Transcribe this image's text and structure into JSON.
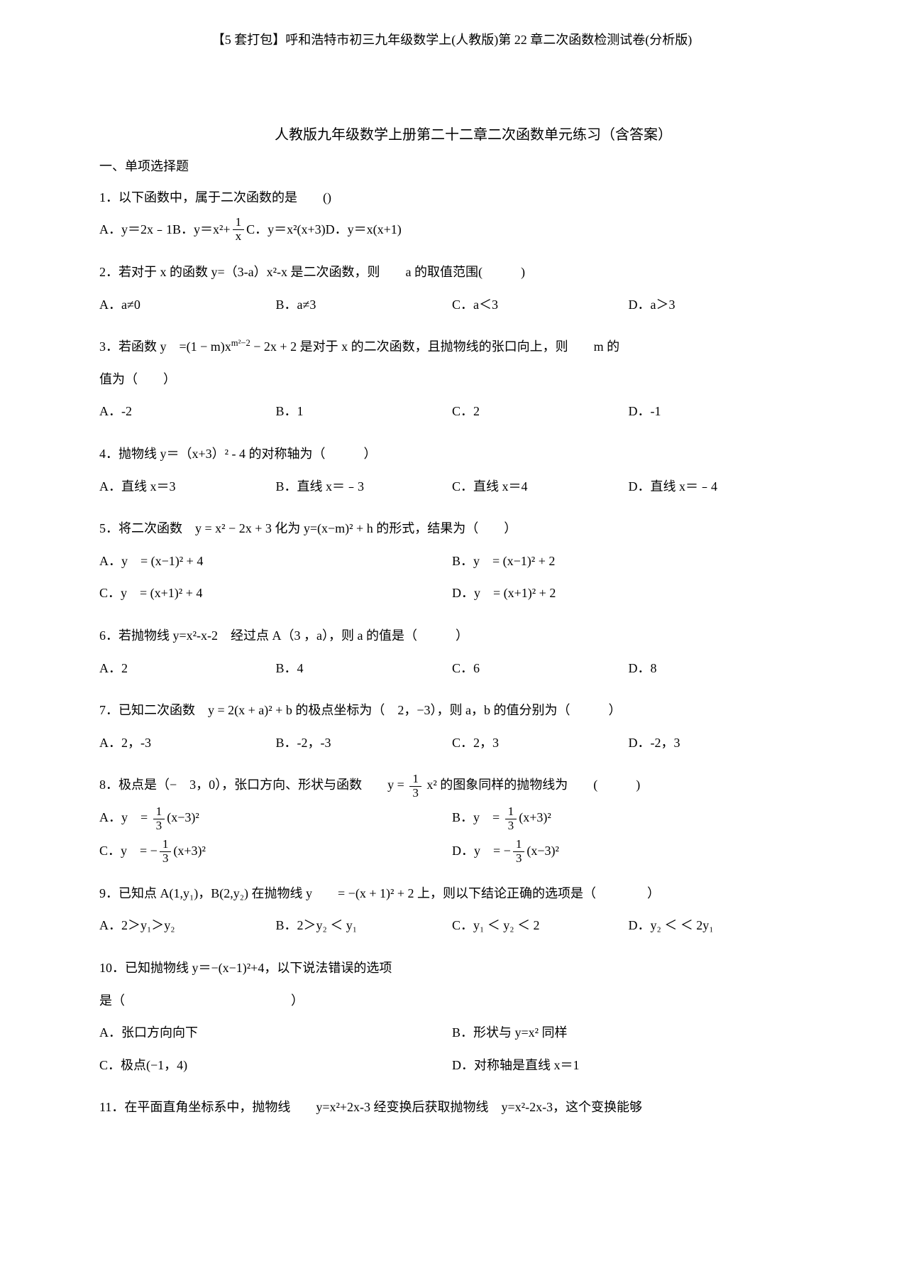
{
  "header": "【5 套打包】呼和浩特市初三九年级数学上(人教版)第 22 章二次函数检测试卷(分析版)",
  "mainTitle": "人教版九年级数学上册第二十二章二次函数单元练习（含答案）",
  "sectionTitle": "一、单项选择题",
  "q1": {
    "text": "1．以下函数中，属于二次函数的是　　()",
    "a": "A．y＝2x﹣1",
    "b": "B．y＝x²+",
    "bFracNum": "1",
    "bFracDen": "x",
    "c": "C．y＝x²(x+3)",
    "d": "D．y＝x(x+1)"
  },
  "q2": {
    "text": "2．若对于 x 的函数 y=（3-a）x²-x 是二次函数，则　　a 的取值范围(　　　)",
    "a": "A．a≠0",
    "b": "B．a≠3",
    "c": "C．a＜3",
    "d": "D．a＞3"
  },
  "q3": {
    "text1": "3．若函数 y　=(1 − m)x",
    "exp": "m²−2",
    "text2": " − 2x + 2 是对于 x 的二次函数，且抛物线的张口向上，则　　m 的",
    "text3": "值为（　　）",
    "a": "A．-2",
    "b": "B．1",
    "c": "C．2",
    "d": "D．-1"
  },
  "q4": {
    "text": "4．抛物线 y＝（x+3）² - 4 的对称轴为（　　　）",
    "a": "A．直线 x＝3",
    "b": "B．直线 x＝﹣3",
    "c": "C．直线 x＝4",
    "d": "D．直线 x＝﹣4"
  },
  "q5": {
    "text": "5．将二次函数　y = x² − 2x + 3 化为 y=(x−m)² + h 的形式，结果为（　　）",
    "a": "A．y　= (x−1)² + 4",
    "b": "B．y　= (x−1)² + 2",
    "c": "C．y　= (x+1)² + 4",
    "d": "D．y　= (x+1)² + 2"
  },
  "q6": {
    "text": "6．若抛物线 y=x²-x-2　经过点 A（3 ，a），则 a 的值是（　　　）",
    "a": "A．2",
    "b": "B．4",
    "c": "C．6",
    "d": "D．8"
  },
  "q7": {
    "text": "7．已知二次函数　y = 2(x + a)² + b 的极点坐标为（　2，−3），则 a，b 的值分别为（　　　）",
    "a": "A．2，-3",
    "b": "B．-2，-3",
    "c": "C．2，3",
    "d": "D．-2，3"
  },
  "q8": {
    "text1": "8．极点是（−　3，0），张口方向、形状与函数　　y = ",
    "fracNum": "1",
    "fracDen": "3",
    "text2": "x² 的图象同样的抛物线为　　(　　　)",
    "aPrefix": "A．y　= ",
    "aNum": "1",
    "aDen": "3",
    "aSuffix": "(x−3)²",
    "bPrefix": "B．y　= ",
    "bNum": "1",
    "bDen": "3",
    "bSuffix": "(x+3)²",
    "cPrefix": "C．y　= −",
    "cNum": "1",
    "cDen": "3",
    "cSuffix": "(x+3)²",
    "dPrefix": "D．y　= −",
    "dNum": "1",
    "dDen": "3",
    "dSuffix": "(x−3)²"
  },
  "q9": {
    "text": "9．已知点 A(1,y₁)，B(2,y₂) 在抛物线 y　　= −(x + 1)² + 2 上，则以下结论正确的选项是（　　　　）",
    "a": "A．2＞y₁＞y₂",
    "b": "B．2＞y₂ ＜ y₁",
    "c": "C．y₁ ＜ y₂ ＜ 2",
    "d": "D．y₂ ＜ ＜ 2y₁"
  },
  "q10": {
    "text1": "10．已知抛物线 y＝−(x−1)²+4，以下说法错误的选项",
    "text2": "是（　　　　　　　　　　　　　）",
    "a": "A．张口方向向下",
    "b": "B．形状与 y=x² 同样",
    "c": "C．极点(−1，4)",
    "d": "D．对称轴是直线 x＝1"
  },
  "q11": {
    "text": "11．在平面直角坐标系中，抛物线　　y=x²+2x-3 经变换后获取抛物线　y=x²-2x-3，这个变换能够"
  }
}
